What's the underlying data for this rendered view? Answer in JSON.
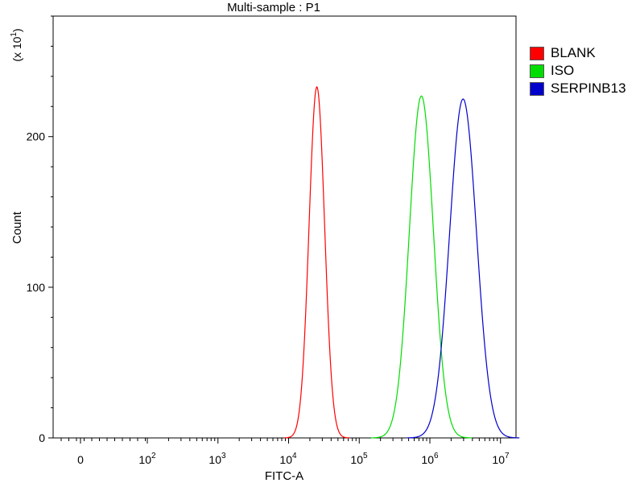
{
  "chart_data": {
    "type": "line",
    "title": "Multi-sample : P1",
    "xlabel": "FITC-A",
    "ylabel": "Count",
    "y_multiplier_label": "(x 10^1)",
    "x_scale": "biexponential",
    "x_ticks": [
      {
        "base": "0",
        "exp": ""
      },
      {
        "base": "10",
        "exp": "2"
      },
      {
        "base": "10",
        "exp": "3"
      },
      {
        "base": "10",
        "exp": "4"
      },
      {
        "base": "10",
        "exp": "5"
      },
      {
        "base": "10",
        "exp": "6"
      },
      {
        "base": "10",
        "exp": "7"
      }
    ],
    "y_ticks": [
      "0",
      "100",
      "200"
    ],
    "ylim": [
      0,
      280
    ],
    "grid": false,
    "legend_position": "right",
    "series": [
      {
        "name": "BLANK",
        "color": "#ff0000",
        "peak_log10": 4.4,
        "peak_count": 233,
        "width_log10": 0.11
      },
      {
        "name": "ISO",
        "color": "#00dd00",
        "peak_log10": 5.88,
        "peak_count": 227,
        "width_log10": 0.17
      },
      {
        "name": "SERPINB13",
        "color": "#0000cc",
        "peak_log10": 6.47,
        "peak_count": 225,
        "width_log10": 0.19
      }
    ]
  }
}
